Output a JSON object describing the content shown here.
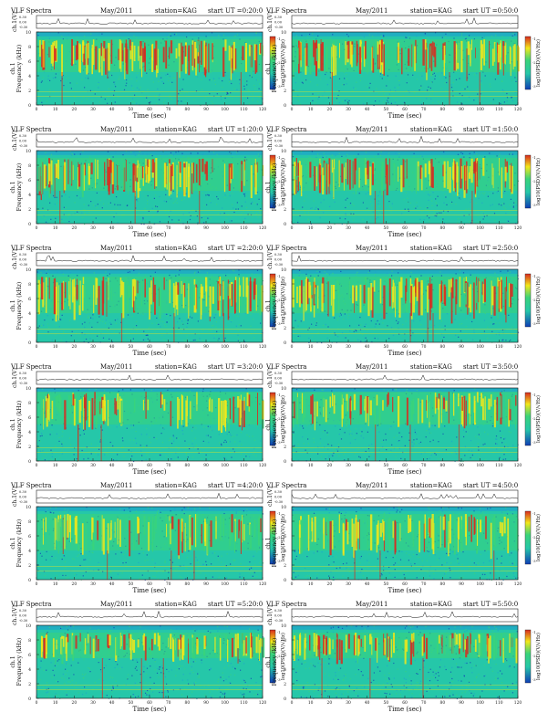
{
  "page_title": "VLF Spectra — KAG, start UT 0:20 to 5:50",
  "labels": {
    "spectra_word": "VLF Spectra",
    "date": "May/2011",
    "station": "station=KAG",
    "start_prefix": "start UT =",
    "ch_label": "ch.1(V)",
    "ch_ticks": [
      "0.30",
      "0.00",
      "-0.30"
    ],
    "freq_label": "Frequency (kHz)",
    "freq_ticks": [
      "0",
      "2",
      "4",
      "6",
      "8",
      "10"
    ],
    "time_label": "Time (sec)",
    "time_ticks": [
      "0",
      "10",
      "20",
      "30",
      "40",
      "50",
      "60",
      "70",
      "80",
      "90",
      "100",
      "110",
      "120"
    ],
    "colorbar_label": "log10(PSD)(V/√Hz)",
    "colorbar_ticks": [
      "-1",
      "-2",
      "-3"
    ]
  },
  "colors": {
    "background": "#25c7a9",
    "low": "#0f3db5",
    "mid": "#3ad37a",
    "high": "#f2e81a",
    "peak": "#d92a1e"
  },
  "chart_data": [
    {
      "type": "heatmap",
      "title": "VLF Spectra May/2011 station=KAG start UT =0:20:0",
      "start_ut": "0:20:0",
      "xlabel": "Time (sec)",
      "ylabel": "Frequency (kHz)",
      "xlim": [
        0,
        120
      ],
      "ylim": [
        0,
        10
      ],
      "band_khz": [
        4.5,
        9.0
      ],
      "intensity": 0.85
    },
    {
      "type": "heatmap",
      "title": "VLF Spectra May/2011 station=KAG start UT =0:50:0",
      "start_ut": "0:50:0",
      "xlabel": "Time (sec)",
      "ylabel": "Frequency (kHz)",
      "xlim": [
        0,
        120
      ],
      "ylim": [
        0,
        10
      ],
      "band_khz": [
        4.5,
        9.0
      ],
      "intensity": 0.8
    },
    {
      "type": "heatmap",
      "title": "VLF Spectra May/2011 station=KAG start UT =1:20:0",
      "start_ut": "1:20:0",
      "xlabel": "Time (sec)",
      "ylabel": "Frequency (kHz)",
      "xlim": [
        0,
        120
      ],
      "ylim": [
        0,
        10
      ],
      "band_khz": [
        4.5,
        9.0
      ],
      "intensity": 0.8
    },
    {
      "type": "heatmap",
      "title": "VLF Spectra May/2011 station=KAG start UT =1:50:0",
      "start_ut": "1:50:0",
      "xlabel": "Time (sec)",
      "ylabel": "Frequency (kHz)",
      "xlim": [
        0,
        120
      ],
      "ylim": [
        0,
        10
      ],
      "band_khz": [
        4.5,
        9.0
      ],
      "intensity": 0.75
    },
    {
      "type": "heatmap",
      "title": "VLF Spectra May/2011 station=KAG start UT =2:20:0",
      "start_ut": "2:20:0",
      "xlabel": "Time (sec)",
      "ylabel": "Frequency (kHz)",
      "xlim": [
        0,
        120
      ],
      "ylim": [
        0,
        10
      ],
      "band_khz": [
        4.0,
        9.0
      ],
      "intensity": 0.7
    },
    {
      "type": "heatmap",
      "title": "VLF Spectra May/2011 station=KAG start UT =2:50:0",
      "start_ut": "2:50:0",
      "xlabel": "Time (sec)",
      "ylabel": "Frequency (kHz)",
      "xlim": [
        0,
        120
      ],
      "ylim": [
        0,
        10
      ],
      "band_khz": [
        4.0,
        9.0
      ],
      "intensity": 0.7
    },
    {
      "type": "heatmap",
      "title": "VLF Spectra May/2011 station=KAG start UT =3:20:0",
      "start_ut": "3:20:0",
      "xlabel": "Time (sec)",
      "ylabel": "Frequency (kHz)",
      "xlim": [
        0,
        120
      ],
      "ylim": [
        0,
        10
      ],
      "band_khz": [
        5.0,
        9.5
      ],
      "intensity": 0.45
    },
    {
      "type": "heatmap",
      "title": "VLF Spectra May/2011 station=KAG start UT =3:50:0",
      "start_ut": "3:50:0",
      "xlabel": "Time (sec)",
      "ylabel": "Frequency (kHz)",
      "xlim": [
        0,
        120
      ],
      "ylim": [
        0,
        10
      ],
      "band_khz": [
        5.0,
        9.5
      ],
      "intensity": 0.45
    },
    {
      "type": "heatmap",
      "title": "VLF Spectra May/2011 station=KAG start UT =4:20:0",
      "start_ut": "4:20:0",
      "xlabel": "Time (sec)",
      "ylabel": "Frequency (kHz)",
      "xlim": [
        0,
        120
      ],
      "ylim": [
        0,
        10
      ],
      "band_khz": [
        4.0,
        9.0
      ],
      "intensity": 0.4
    },
    {
      "type": "heatmap",
      "title": "VLF Spectra May/2011 station=KAG start UT =4:50:0",
      "start_ut": "4:50:0",
      "xlabel": "Time (sec)",
      "ylabel": "Frequency (kHz)",
      "xlim": [
        0,
        120
      ],
      "ylim": [
        0,
        10
      ],
      "band_khz": [
        4.0,
        9.0
      ],
      "intensity": 0.45
    },
    {
      "type": "heatmap",
      "title": "VLF Spectra May/2011 station=KAG start UT =5:20:0",
      "start_ut": "5:20:0",
      "xlabel": "Time (sec)",
      "ylabel": "Frequency (kHz)",
      "xlim": [
        0,
        120
      ],
      "ylim": [
        0,
        10
      ],
      "band_khz": [
        5.5,
        9.0
      ],
      "intensity": 0.6
    },
    {
      "type": "heatmap",
      "title": "VLF Spectra May/2011 station=KAG start UT =5:50:0",
      "start_ut": "5:50:0",
      "xlabel": "Time (sec)",
      "ylabel": "Frequency (kHz)",
      "xlim": [
        0,
        120
      ],
      "ylim": [
        0,
        10
      ],
      "band_khz": [
        5.5,
        9.0
      ],
      "intensity": 0.6
    }
  ]
}
